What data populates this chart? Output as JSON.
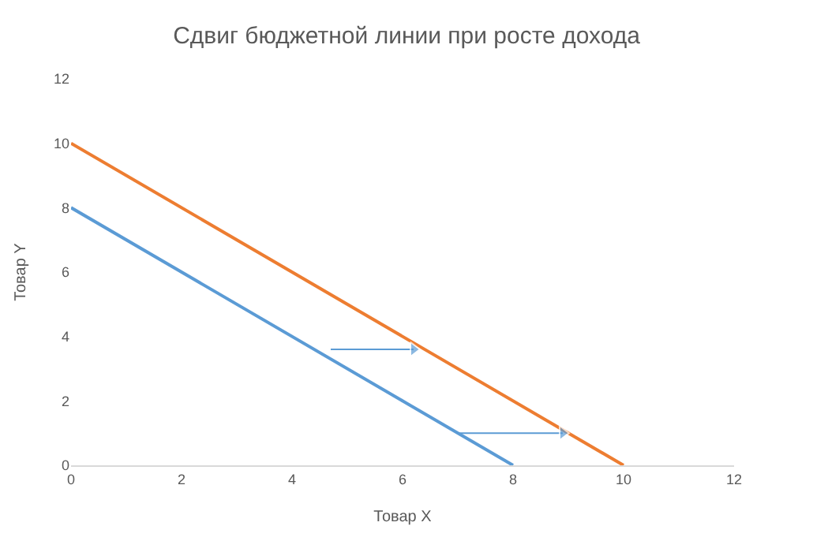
{
  "chart_data": {
    "type": "line",
    "title": "Сдвиг бюджетной линии при росте дохода",
    "xlabel": "Товар X",
    "ylabel": "Товар Y",
    "series": [
      {
        "color": "#5b9bd5",
        "x": [
          0,
          8
        ],
        "values": [
          8,
          0
        ]
      },
      {
        "color": "#ed7d31",
        "x": [
          0,
          10
        ],
        "values": [
          10,
          0
        ]
      },
      {
        "color": "#5b9bd5",
        "x": [
          4.7,
          6.2
        ],
        "values": [
          3.6,
          3.6
        ],
        "marker": "triangle"
      },
      {
        "color": "#5b9bd5",
        "x": [
          7.0,
          8.9
        ],
        "values": [
          1.0,
          1.0
        ],
        "marker": "triangle"
      }
    ],
    "xlim": [
      0,
      12
    ],
    "xticks": [
      0,
      2,
      4,
      6,
      8,
      10,
      12
    ],
    "ylim": [
      0,
      12
    ],
    "yticks": [
      0,
      2,
      4,
      6,
      8,
      10,
      12
    ]
  }
}
